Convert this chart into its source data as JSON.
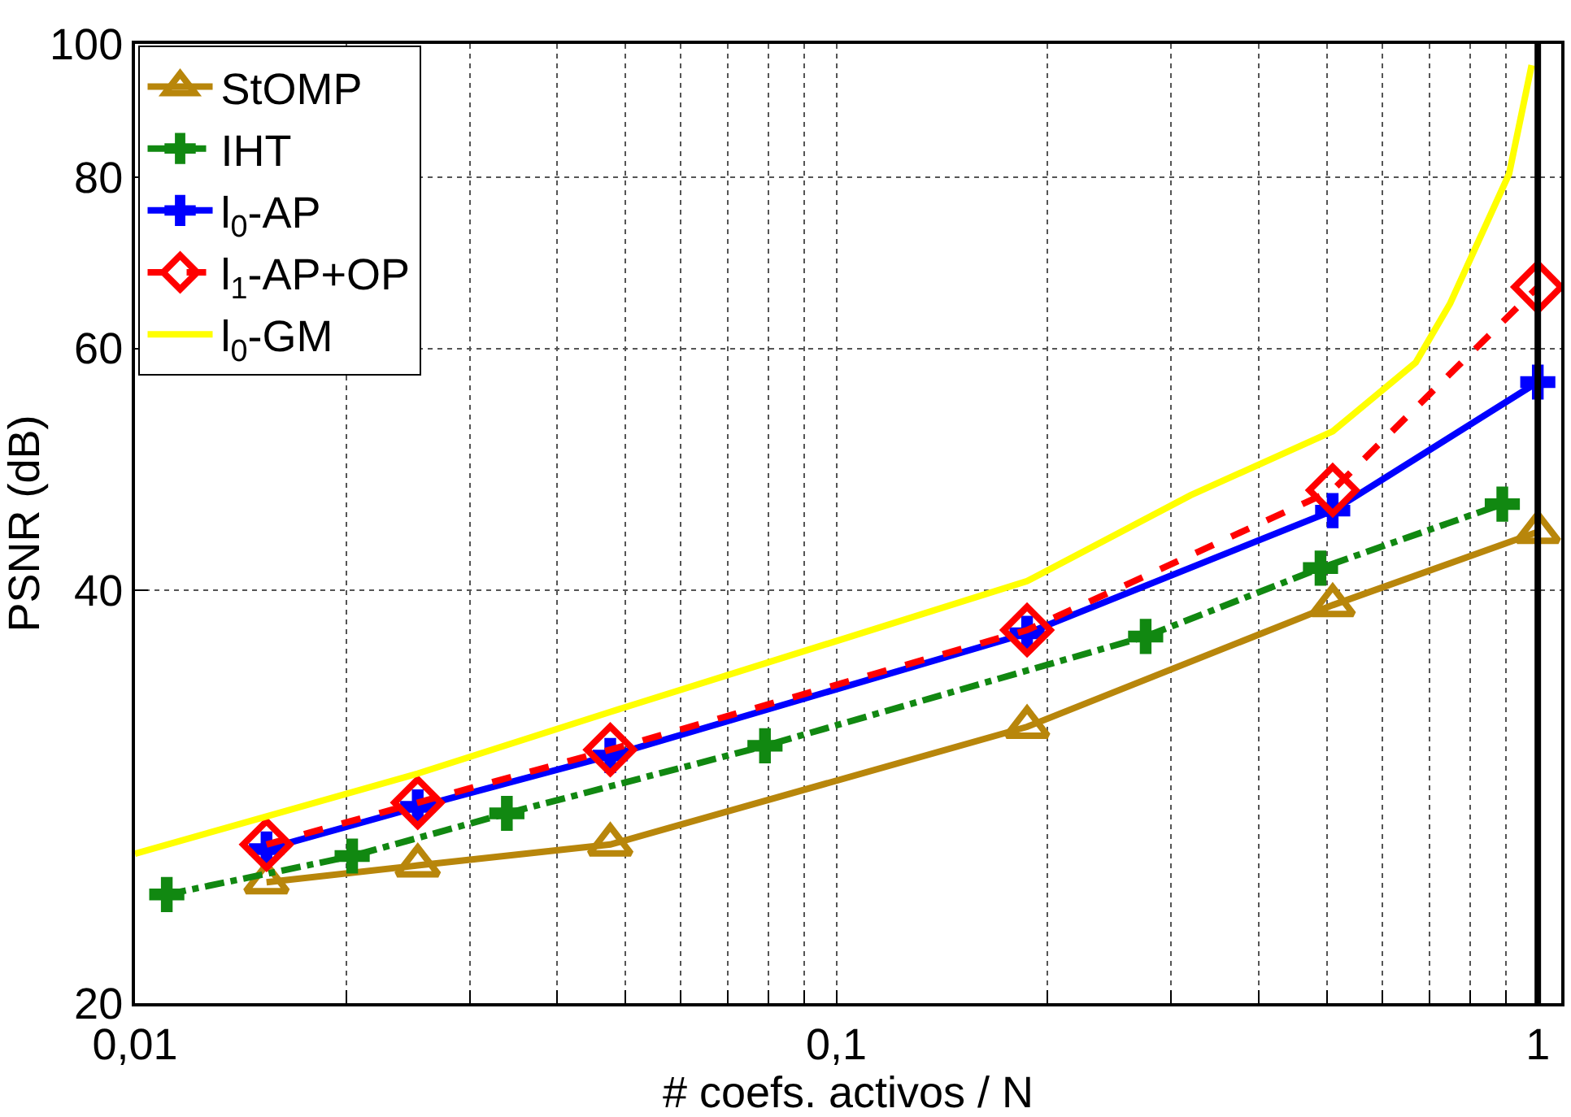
{
  "chart_data": {
    "type": "line",
    "xlabel": "# coefs. activos / N",
    "ylabel": "PSNR (dB)",
    "log": "xy",
    "grid": true,
    "legend": "top left",
    "xlim": [
      0.01,
      1.08
    ],
    "xticks": [
      {
        "value": 0.01,
        "label": "0,01"
      },
      {
        "value": 0.02,
        "label": null
      },
      {
        "value": 0.03,
        "label": null
      },
      {
        "value": 0.04,
        "label": null
      },
      {
        "value": 0.05,
        "label": null
      },
      {
        "value": 0.06,
        "label": null
      },
      {
        "value": 0.07,
        "label": null
      },
      {
        "value": 0.08,
        "label": null
      },
      {
        "value": 0.09,
        "label": null
      },
      {
        "value": 0.1,
        "label": "0,1"
      },
      {
        "value": 0.2,
        "label": null
      },
      {
        "value": 0.3,
        "label": null
      },
      {
        "value": 0.4,
        "label": null
      },
      {
        "value": 0.5,
        "label": null
      },
      {
        "value": 0.6,
        "label": null
      },
      {
        "value": 0.7,
        "label": null
      },
      {
        "value": 0.8,
        "label": null
      },
      {
        "value": 0.9,
        "label": null
      },
      1
    ],
    "ylim": [
      20,
      100
    ],
    "yticks": [
      20,
      40,
      60,
      80,
      100
    ],
    "ref_lines": [
      {
        "axis": "x",
        "value": 1,
        "color": "#000000",
        "line_style": "solid"
      }
    ],
    "series": [
      {
        "name": "StOMP",
        "color": "#b8860b",
        "marker": "triangle",
        "line_style": "solid",
        "x": [
          0.0154,
          0.0253,
          0.0476,
          0.187,
          0.51,
          1
        ],
        "values": [
          24.5,
          25.2,
          26.1,
          31.8,
          39.0,
          44.1
        ]
      },
      {
        "name": "IHT",
        "color": "#118811",
        "marker": "cross",
        "line_style": "dashdot",
        "x": [
          0.0111,
          0.0204,
          0.0339,
          0.0791,
          0.276,
          0.49,
          0.89
        ],
        "values": [
          24.0,
          25.6,
          27.5,
          30.8,
          37.0,
          41.5,
          46.2
        ]
      },
      {
        "name": "l$_{0}$-AP",
        "color": "#0000ff",
        "marker": "cross",
        "line_style": "solid",
        "x": [
          0.0154,
          0.0253,
          0.0476,
          0.187,
          0.51,
          1
        ],
        "values": [
          25.9,
          27.8,
          30.3,
          37.2,
          45.7,
          56.7
        ]
      },
      {
        "name": "l$_{1}$-AP+OP",
        "color": "#ff0000",
        "marker": "diamond",
        "line_style": "dashed",
        "x": [
          0.0154,
          0.0253,
          0.0476,
          0.187,
          0.51,
          1
        ],
        "values": [
          26.1,
          28.0,
          30.6,
          37.4,
          47.3,
          66.5
        ]
      },
      {
        "name": "l$_{0}$-GM",
        "color": "#ffff00",
        "marker": "none",
        "line_style": "solid",
        "x": [
          0.01,
          0.0253,
          0.0476,
          0.187,
          0.32,
          0.51,
          0.67,
          0.75,
          0.91,
          0.98
        ],
        "values": [
          25.7,
          29.4,
          32.6,
          40.6,
          46.9,
          52.2,
          58.6,
          64.7,
          80.4,
          96.5
        ]
      }
    ]
  }
}
